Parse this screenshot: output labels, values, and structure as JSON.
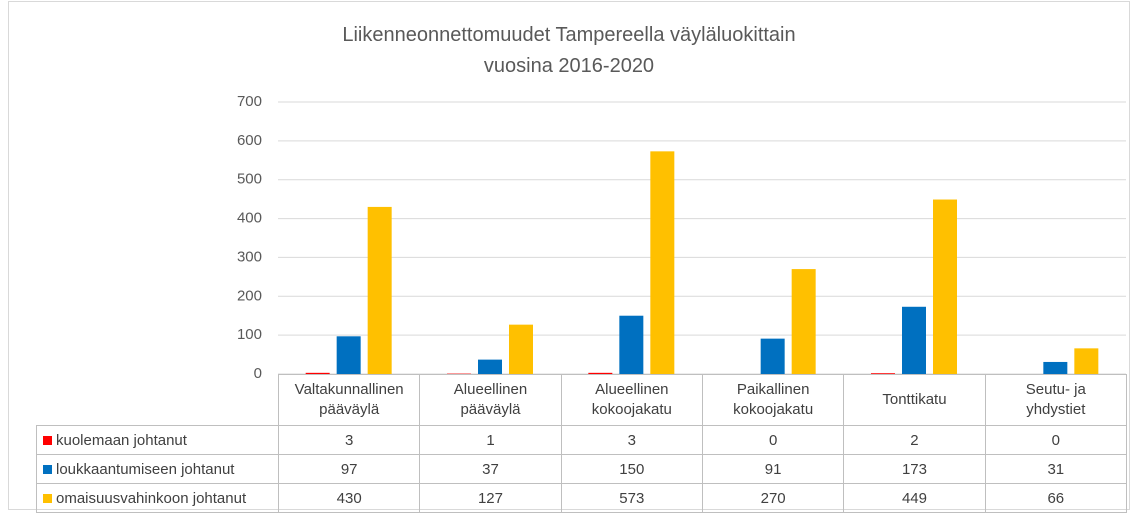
{
  "chart_data": {
    "type": "bar",
    "title": "Liikenneonnettomuudet Tampereella väyläluokittain\nvuosina 2016-2020",
    "categories": [
      "Valtakunnallinen\npääväylä",
      "Alueellinen\npääväylä",
      "Alueellinen\nkokoojakatu",
      "Paikallinen\nkokoojakatu",
      "Tonttikatu",
      "Seutu- ja\nyhdystiet"
    ],
    "series": [
      {
        "name": "kuolemaan johtanut",
        "color": "#ff0000",
        "values": [
          3,
          1,
          3,
          0,
          2,
          0
        ]
      },
      {
        "name": "loukkaantumiseen johtanut",
        "color": "#0070c0",
        "values": [
          97,
          37,
          150,
          91,
          173,
          31
        ]
      },
      {
        "name": "omaisuusvahinkoon johtanut",
        "color": "#ffc000",
        "values": [
          430,
          127,
          573,
          270,
          449,
          66
        ]
      }
    ],
    "ylim": [
      0,
      700
    ],
    "yticks": [
      0,
      100,
      200,
      300,
      400,
      500,
      600,
      700
    ],
    "grid": true,
    "legend": "table"
  }
}
